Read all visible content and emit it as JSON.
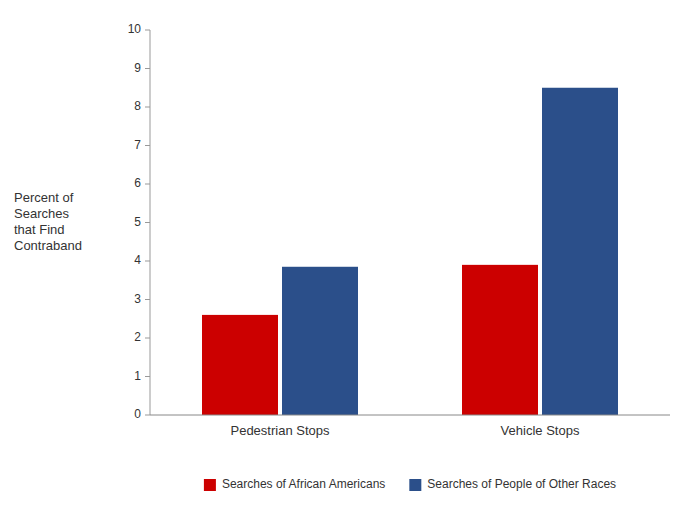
{
  "chart_data": {
    "type": "bar",
    "categories": [
      "Pedestrian Stops",
      "Vehicle Stops"
    ],
    "series": [
      {
        "name": "Searches of African Americans",
        "color": "#CC0000",
        "values": [
          2.6,
          3.9
        ]
      },
      {
        "name": "Searches of People of Other Races",
        "color": "#2B4F8A",
        "values": [
          3.85,
          8.5
        ]
      }
    ],
    "ylabel": "Percent of\nSearches\nthat Find\nContraband",
    "ylim": [
      0,
      10
    ],
    "yticks": [
      0,
      1,
      2,
      3,
      4,
      5,
      6,
      7,
      8,
      9,
      10
    ],
    "grid": false,
    "legend": "bottom"
  }
}
